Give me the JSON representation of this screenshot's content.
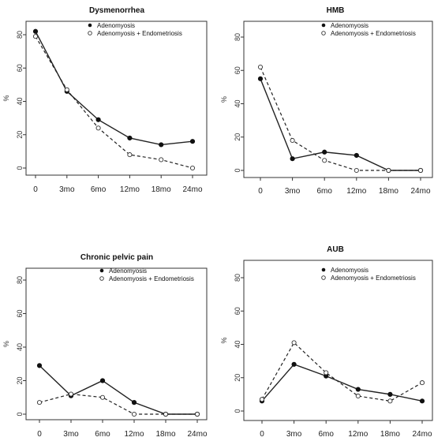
{
  "chart_data": [
    {
      "type": "line",
      "title": "Dysmenorrhea",
      "ylabel": "%",
      "categories": [
        "0",
        "3mo",
        "6mo",
        "12mo",
        "18mo",
        "24mo"
      ],
      "yticks": [
        0,
        20,
        40,
        60,
        80
      ],
      "ylim": [
        0,
        90
      ],
      "legend_position": "top-right",
      "series": [
        {
          "name": "Adenomyosis",
          "values": [
            82,
            46,
            29,
            18,
            14,
            16
          ]
        },
        {
          "name": "Adenomyosis + Endometriosis",
          "values": [
            79,
            47,
            24,
            8,
            5,
            0
          ]
        }
      ]
    },
    {
      "type": "line",
      "title": "HMB",
      "ylabel": "%",
      "categories": [
        "0",
        "3mo",
        "6mo",
        "12mo",
        "18mo",
        "24mo"
      ],
      "yticks": [
        0,
        20,
        40,
        60,
        80
      ],
      "ylim": [
        0,
        90
      ],
      "legend_position": "top-right",
      "series": [
        {
          "name": "Adenomyosis",
          "values": [
            55,
            7,
            11,
            9,
            0,
            0
          ]
        },
        {
          "name": "Adenomyosis + Endometriosis",
          "values": [
            62,
            18,
            6,
            0,
            0,
            0
          ]
        }
      ]
    },
    {
      "type": "line",
      "title": "Chronic pelvic pain",
      "ylabel": "%",
      "categories": [
        "0",
        "3mo",
        "6mo",
        "12mo",
        "18mo",
        "24mo"
      ],
      "yticks": [
        0,
        20,
        40,
        60,
        80
      ],
      "ylim": [
        0,
        90
      ],
      "legend_position": "top-right",
      "series": [
        {
          "name": "Adenomyosis",
          "values": [
            29,
            11,
            20,
            7,
            0,
            0
          ]
        },
        {
          "name": "Adenomyosis + Endometriosis",
          "values": [
            7,
            12,
            10,
            0,
            0,
            0
          ]
        }
      ]
    },
    {
      "type": "line",
      "title": "AUB",
      "ylabel": "%",
      "categories": [
        "0",
        "3mo",
        "6mo",
        "12mo",
        "18mo",
        "24mo"
      ],
      "yticks": [
        0,
        20,
        40,
        60,
        80
      ],
      "ylim": [
        0,
        90
      ],
      "legend_position": "top-right",
      "series": [
        {
          "name": "Adenomyosis",
          "values": [
            6,
            28,
            21,
            13,
            10,
            6
          ]
        },
        {
          "name": "Adenomyosis + Endometriosis",
          "values": [
            7,
            41,
            23,
            9,
            6,
            17
          ]
        }
      ]
    }
  ]
}
